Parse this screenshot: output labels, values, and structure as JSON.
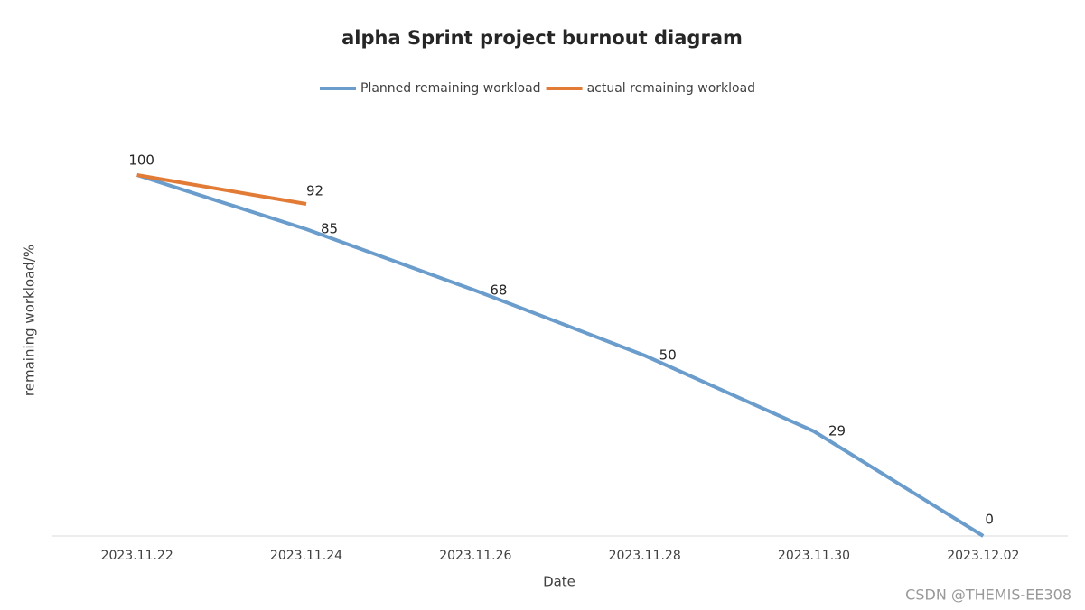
{
  "chart_data": {
    "type": "line",
    "title": "alpha Sprint project burnout diagram",
    "x_label": "Date",
    "y_label": "remaining workload/%",
    "categories": [
      "2023.11.22",
      "2023.11.24",
      "2023.11.26",
      "2023.11.28",
      "2023.11.30",
      "2023.12.02"
    ],
    "series": [
      {
        "name": "Planned remaining workload",
        "color": "#6a9ccc",
        "values": [
          100,
          85,
          68,
          50,
          29,
          0
        ]
      },
      {
        "name": "actual remaining workload",
        "color": "#e27b36",
        "values": [
          100,
          92,
          null,
          null,
          null,
          null
        ]
      }
    ],
    "ylim": [
      0,
      100
    ],
    "legend": "top",
    "watermark": "CSDN @THEMIS-EE308"
  }
}
